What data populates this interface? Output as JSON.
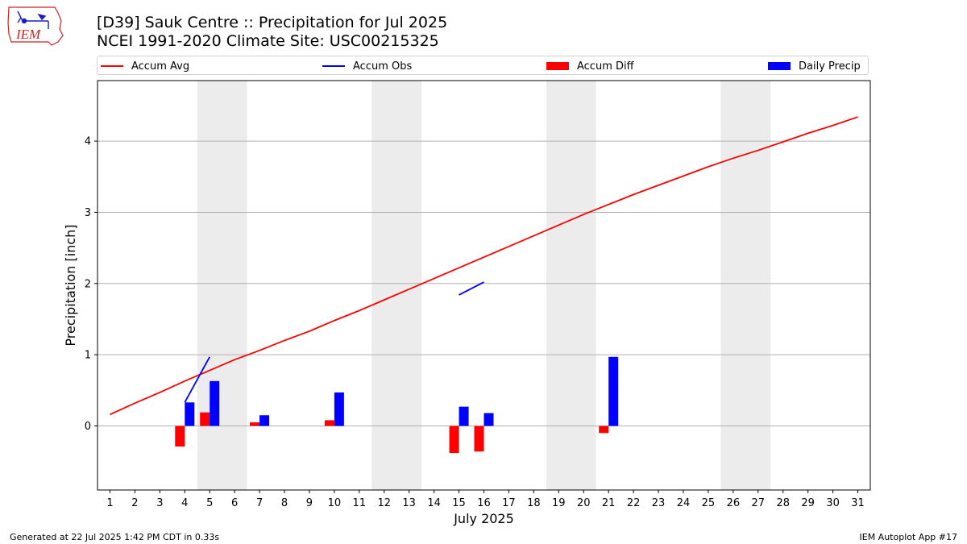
{
  "header": {
    "title_line1": "[D39] Sauk Centre :: Precipitation for Jul 2025",
    "title_line2": "NCEI 1991-2020 Climate Site: USC00215325",
    "logo_text": "IEM"
  },
  "legend": {
    "items": [
      {
        "label": "Accum Avg",
        "kind": "line",
        "color": "#ff0000"
      },
      {
        "label": "Accum Obs",
        "kind": "line",
        "color": "#0000ff"
      },
      {
        "label": "Accum Diff",
        "kind": "patch",
        "color": "#ff0000"
      },
      {
        "label": "Daily Precip",
        "kind": "patch",
        "color": "#0000ff"
      }
    ]
  },
  "footer": {
    "left": "Generated at 22 Jul 2025 1:42 PM CDT in 0.33s",
    "right": "IEM Autoplot App #17"
  },
  "chart_data": {
    "type": "bar",
    "xlabel": "July 2025",
    "ylabel": "Precipitation [inch]",
    "xlim": [
      0.5,
      31.5
    ],
    "ylim": [
      -0.9,
      4.85
    ],
    "yticks": [
      0,
      1,
      2,
      3,
      4
    ],
    "grid": "horizontal",
    "legend_position": "top",
    "x": [
      1,
      2,
      3,
      4,
      5,
      6,
      7,
      8,
      9,
      10,
      11,
      12,
      13,
      14,
      15,
      16,
      17,
      18,
      19,
      20,
      21,
      22,
      23,
      24,
      25,
      26,
      27,
      28,
      29,
      30,
      31
    ],
    "weekend_shading": [
      [
        4.5,
        6.5
      ],
      [
        11.5,
        13.5
      ],
      [
        18.5,
        20.5
      ],
      [
        25.5,
        27.5
      ]
    ],
    "series": [
      {
        "name": "Accum Avg",
        "kind": "line",
        "color": "#ff0000",
        "values": [
          0.16,
          0.32,
          0.47,
          0.63,
          0.78,
          0.93,
          1.06,
          1.2,
          1.33,
          1.48,
          1.62,
          1.77,
          1.92,
          2.07,
          2.22,
          2.37,
          2.52,
          2.67,
          2.82,
          2.97,
          3.11,
          3.25,
          3.38,
          3.51,
          3.64,
          3.76,
          3.87,
          3.99,
          4.11,
          4.22,
          4.34
        ]
      },
      {
        "name": "Accum Obs",
        "kind": "line",
        "color": "#0000ff",
        "values": [
          null,
          null,
          null,
          0.33,
          0.97,
          null,
          null,
          null,
          null,
          null,
          null,
          null,
          null,
          null,
          1.84,
          2.02,
          null,
          null,
          null,
          null,
          null,
          null,
          null,
          null,
          null,
          null,
          null,
          null,
          null,
          null,
          null
        ]
      },
      {
        "name": "Accum Diff",
        "kind": "bar",
        "color": "#ff0000",
        "values": [
          null,
          null,
          null,
          -0.29,
          0.19,
          null,
          0.05,
          null,
          null,
          0.08,
          null,
          null,
          null,
          null,
          -0.38,
          -0.36,
          null,
          null,
          null,
          null,
          -0.1,
          null,
          null,
          null,
          null,
          null,
          null,
          null,
          null,
          null,
          null
        ]
      },
      {
        "name": "Daily Precip",
        "kind": "bar",
        "color": "#0000ff",
        "values": [
          null,
          null,
          null,
          0.33,
          0.63,
          null,
          0.15,
          null,
          null,
          0.47,
          null,
          null,
          null,
          null,
          0.27,
          0.18,
          null,
          null,
          null,
          null,
          0.97,
          null,
          null,
          null,
          null,
          null,
          null,
          null,
          null,
          null,
          null
        ]
      }
    ]
  }
}
